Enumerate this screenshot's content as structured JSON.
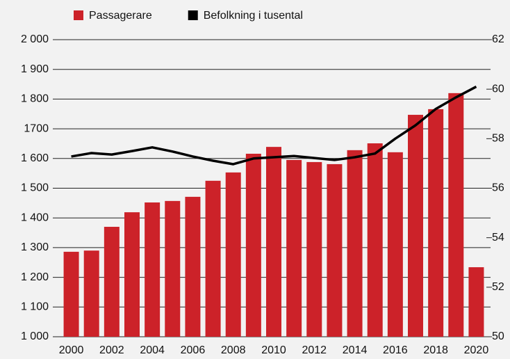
{
  "chart_data": {
    "type": "bar",
    "categories": [
      "2000",
      null,
      "2002",
      null,
      "2004",
      null,
      "2006",
      null,
      "2008",
      null,
      "2010",
      null,
      "2012",
      null,
      "2014",
      null,
      "2016",
      null,
      "2018",
      null,
      "2020"
    ],
    "series": [
      {
        "name": "Passagerare",
        "color": "#cc2229",
        "type": "bar",
        "values": [
          1286,
          1290,
          1370,
          1419,
          1452,
          1457,
          1471,
          1525,
          1553,
          1616,
          1639,
          1595,
          1588,
          1581,
          1628,
          1651,
          1621,
          1747,
          1766,
          1820,
          1234
        ]
      },
      {
        "name": "Befolkning i tusental",
        "color": "#000000",
        "type": "line",
        "axis": "y2",
        "values": [
          57.28,
          57.42,
          57.36,
          57.5,
          57.65,
          57.48,
          57.28,
          57.11,
          56.97,
          57.2,
          57.25,
          57.3,
          57.22,
          57.14,
          57.25,
          57.4,
          58.0,
          58.54,
          59.2,
          59.67,
          60.1
        ]
      }
    ],
    "ylim": [
      1000,
      2000
    ],
    "yticks": [
      {
        "value": 1000,
        "label": "1 000"
      },
      {
        "value": 1100,
        "label": "1 100"
      },
      {
        "value": 1200,
        "label": "1 200"
      },
      {
        "value": 1300,
        "label": "1 300"
      },
      {
        "value": 1400,
        "label": "1 400"
      },
      {
        "value": 1500,
        "label": "1 500"
      },
      {
        "value": 1600,
        "label": "1 600"
      },
      1700,
      {
        "value": 1800,
        "label": "1 800"
      },
      {
        "value": 1900,
        "label": "1 900"
      },
      {
        "value": 2000,
        "label": "2 000"
      }
    ],
    "y2lim": [
      50,
      62
    ],
    "y2ticks": [
      50,
      52,
      54,
      56,
      58,
      60,
      62
    ],
    "grid": true,
    "legend": "top"
  }
}
